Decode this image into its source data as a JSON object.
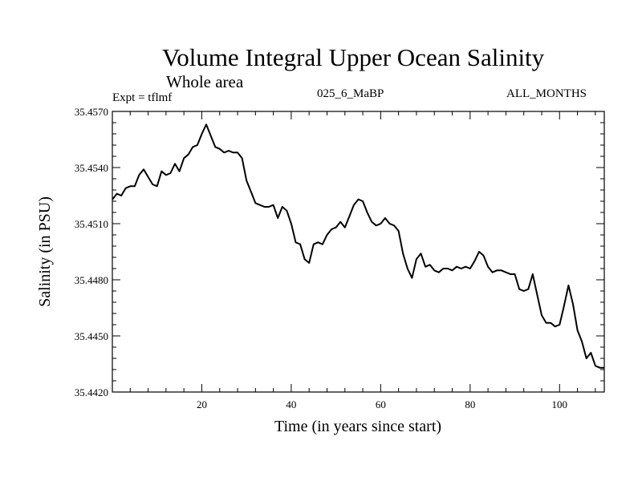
{
  "chart_data": {
    "type": "line",
    "title": "Volume Integral Upper Ocean Salinity",
    "subtitle": "Whole area",
    "experiment": "Expt = tflmf",
    "run_id": "025_6_MaBP",
    "months": "ALL_MONTHS",
    "xlabel": "Time (in years since start)",
    "ylabel": "Salinity (in PSU)",
    "xlim": [
      0,
      110
    ],
    "ylim": [
      35.442,
      35.457
    ],
    "xticks": [
      20,
      40,
      60,
      80,
      100
    ],
    "yticks": [
      35.442,
      35.445,
      35.448,
      35.451,
      35.454,
      35.457
    ],
    "ytick_labels": [
      "35.4420",
      "35.4450",
      "35.4480",
      "35.4510",
      "35.4540",
      "35.4570"
    ],
    "series": [
      {
        "name": "salinity",
        "x": [
          0,
          1,
          2,
          3,
          4,
          5,
          6,
          7,
          8,
          9,
          10,
          11,
          12,
          13,
          14,
          15,
          16,
          17,
          18,
          19,
          20,
          21,
          22,
          23,
          24,
          25,
          26,
          27,
          28,
          29,
          30,
          31,
          32,
          33,
          34,
          35,
          36,
          37,
          38,
          39,
          40,
          41,
          42,
          43,
          44,
          45,
          46,
          47,
          48,
          49,
          50,
          51,
          52,
          53,
          54,
          55,
          56,
          57,
          58,
          59,
          60,
          61,
          62,
          63,
          64,
          65,
          66,
          67,
          68,
          69,
          70,
          71,
          72,
          73,
          74,
          75,
          76,
          77,
          78,
          79,
          80,
          81,
          82,
          83,
          84,
          85,
          86,
          87,
          88,
          89,
          90,
          91,
          92,
          93,
          94,
          95,
          96,
          97,
          98,
          99,
          100,
          101,
          102,
          103,
          104,
          105,
          106,
          107,
          108,
          109,
          110
        ],
        "y": [
          35.4523,
          35.4526,
          35.4525,
          35.4529,
          35.453,
          35.453,
          35.4536,
          35.4539,
          35.4535,
          35.4531,
          35.453,
          35.4538,
          35.4536,
          35.4537,
          35.4542,
          35.4538,
          35.4545,
          35.4547,
          35.4551,
          35.4552,
          35.4558,
          35.4563,
          35.4557,
          35.4551,
          35.455,
          35.4548,
          35.4549,
          35.4548,
          35.4548,
          35.4545,
          35.4533,
          35.4527,
          35.4521,
          35.452,
          35.4519,
          35.4519,
          35.452,
          35.4513,
          35.4519,
          35.4517,
          35.451,
          35.45,
          35.4499,
          35.4491,
          35.4489,
          35.4499,
          35.45,
          35.4499,
          35.4504,
          35.4507,
          35.4508,
          35.4511,
          35.4508,
          35.4514,
          35.452,
          35.4523,
          35.4522,
          35.4516,
          35.4511,
          35.4509,
          35.451,
          35.4513,
          35.451,
          35.4509,
          35.4506,
          35.4494,
          35.4486,
          35.4481,
          35.4491,
          35.4494,
          35.4487,
          35.4488,
          35.4485,
          35.4484,
          35.4486,
          35.4486,
          35.4485,
          35.4487,
          35.4486,
          35.4487,
          35.4486,
          35.449,
          35.4495,
          35.4493,
          35.4487,
          35.4484,
          35.4485,
          35.4485,
          35.4484,
          35.4483,
          35.4483,
          35.4475,
          35.4474,
          35.4475,
          35.4483,
          35.4472,
          35.4461,
          35.4457,
          35.4457,
          35.4455,
          35.4456,
          35.4466,
          35.4477,
          35.4467,
          35.4453,
          35.4447,
          35.4438,
          35.4441,
          35.4434,
          35.4433,
          35.4433
        ]
      }
    ]
  }
}
